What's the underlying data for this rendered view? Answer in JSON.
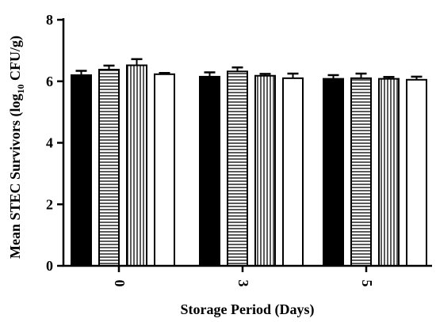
{
  "chart_data": {
    "type": "bar",
    "xlabel": "Storage Period (Days)",
    "ylabel_parts": [
      "Mean STEC Survivors (log",
      "10",
      " CFU/g)"
    ],
    "categories": [
      "0",
      "3",
      "5"
    ],
    "ylim": [
      0,
      8
    ],
    "yticks": [
      "0",
      "2",
      "4",
      "6",
      "8"
    ],
    "grid": false,
    "legend": "none",
    "series": [
      {
        "pattern": "solid-black",
        "values": [
          6.2,
          6.15,
          6.08
        ],
        "errors": [
          0.14,
          0.14,
          0.12
        ]
      },
      {
        "pattern": "horizontal-stripes",
        "values": [
          6.38,
          6.32,
          6.1
        ],
        "errors": [
          0.13,
          0.13,
          0.15
        ]
      },
      {
        "pattern": "vertical-stripes",
        "values": [
          6.52,
          6.18,
          6.08
        ],
        "errors": [
          0.2,
          0.06,
          0.06
        ]
      },
      {
        "pattern": "white",
        "values": [
          6.23,
          6.1,
          6.05
        ],
        "errors": [
          0.04,
          0.15,
          0.1
        ]
      }
    ]
  }
}
